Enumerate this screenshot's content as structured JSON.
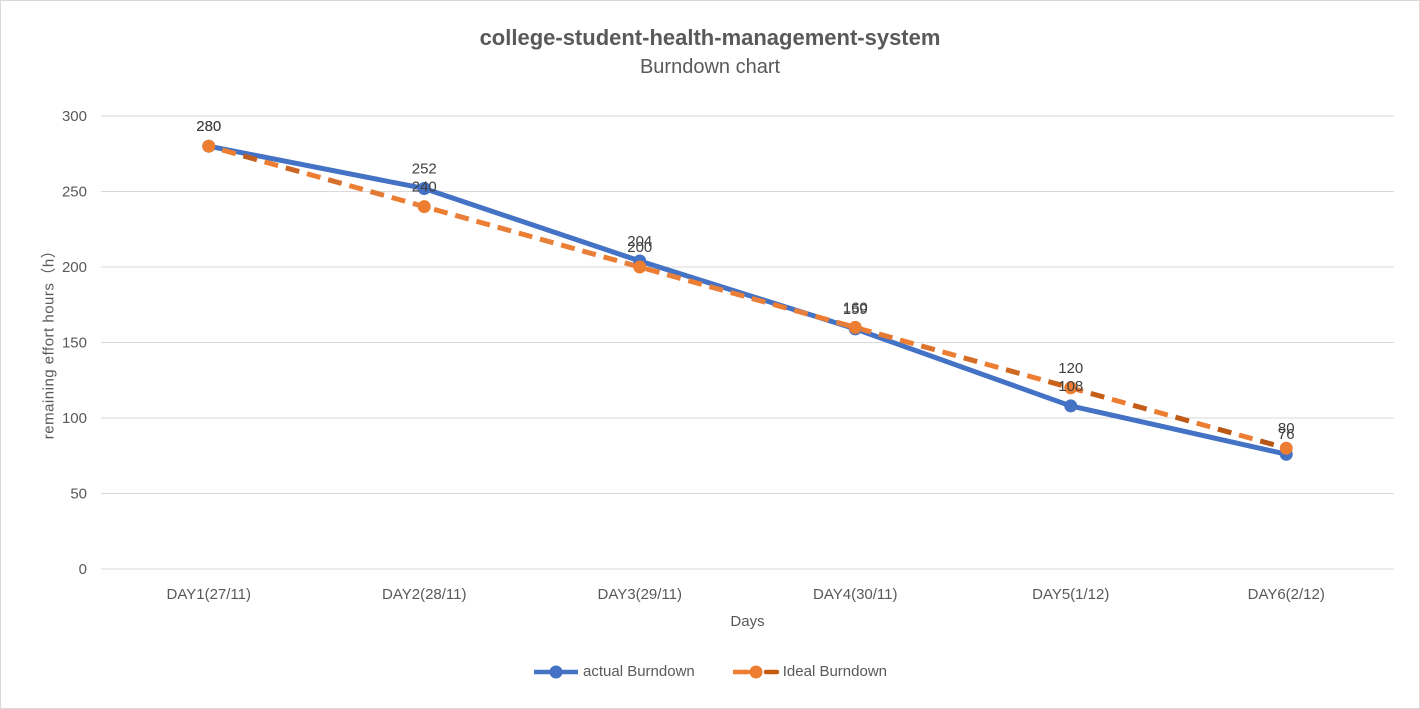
{
  "window": {
    "background": "#FFFFFF",
    "border_color": "#D9D9D9"
  },
  "chart_data": {
    "type": "line",
    "title": "college-student-health-management-system",
    "subtitle": "Burndown chart",
    "xlabel": "Days",
    "ylabel": "remaining effort hours（h）",
    "ylim": [
      0,
      300
    ],
    "yticks": [
      0,
      50,
      100,
      150,
      200,
      250,
      300
    ],
    "grid": "horizontal-only",
    "gridline_color": "#D9D9D9",
    "axis_text_color": "#595959",
    "data_label_color": "#404040",
    "legend_position": "bottom",
    "data_labels": true,
    "categories": [
      "DAY1(27/11)",
      "DAY2(28/11)",
      "DAY3(29/11)",
      "DAY4(30/11)",
      "DAY5(1/12)",
      "DAY6(2/12)"
    ],
    "series": [
      {
        "name": "actual Burndown",
        "color": "#4472C4",
        "style": "solid",
        "marker": "circle",
        "values": [
          280,
          252,
          204,
          159,
          108,
          76
        ]
      },
      {
        "name": "Ideal Burndown",
        "color": "#ED7D31",
        "color_dark": "#B55514",
        "style": "dashed",
        "marker": "circle",
        "values": [
          280,
          240,
          200,
          160,
          120,
          80
        ]
      }
    ]
  }
}
